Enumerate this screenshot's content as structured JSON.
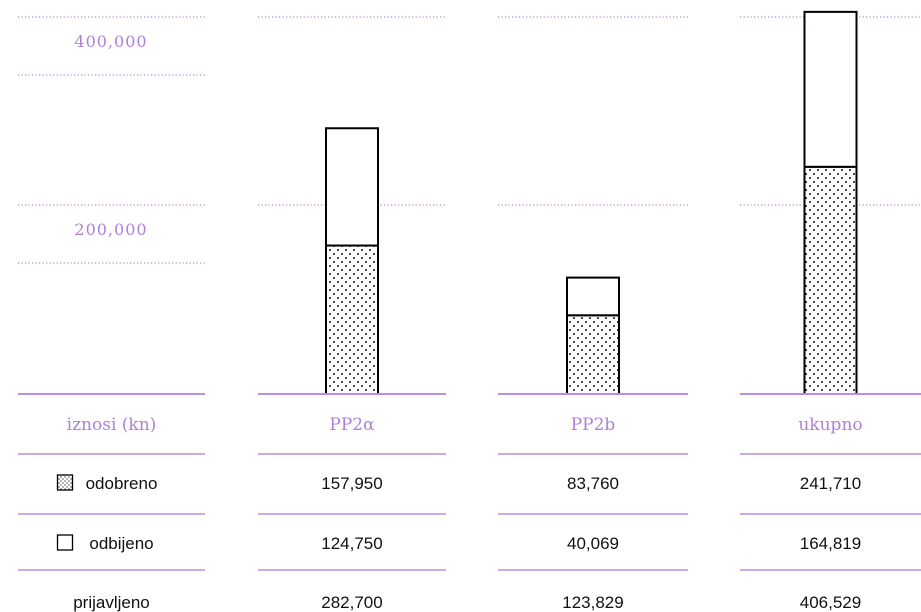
{
  "chart_data": {
    "type": "bar",
    "stacked": true,
    "categories": [
      "PP2a",
      "PP2b",
      "ukupno"
    ],
    "series": [
      {
        "name": "odobreno",
        "values": [
          157950,
          83760,
          241710
        ]
      },
      {
        "name": "odbijeno",
        "values": [
          124750,
          40069,
          164819
        ]
      }
    ],
    "totals_name": "prijavljeno",
    "totals": [
      282700,
      123829,
      406529
    ],
    "y_ticks": [
      {
        "value": 200000,
        "label": "200,000"
      },
      {
        "value": 400000,
        "label": "400,000"
      }
    ],
    "ylim": [
      0,
      420000
    ],
    "grid": true,
    "table": {
      "header_label": "iznosi (kn)",
      "category_labels": [
        "PP2α",
        "PP2b",
        "ukupno"
      ],
      "rows": [
        {
          "label": "odobreno",
          "icon": "dotted-square-icon",
          "cells": [
            "157,950",
            "83,760",
            "241,710"
          ]
        },
        {
          "label": "odbijeno",
          "icon": "empty-square-icon",
          "cells": [
            "124,750",
            "40,069",
            "164,819"
          ]
        },
        {
          "label": "prijavljeno",
          "icon": "",
          "cells": [
            "282,700",
            "123,829",
            "406,529"
          ]
        }
      ]
    },
    "colors": {
      "accent": "#b98fe0",
      "tick_label": "#b07fd8",
      "bar_stroke": "#000000",
      "text": "#111111"
    }
  }
}
